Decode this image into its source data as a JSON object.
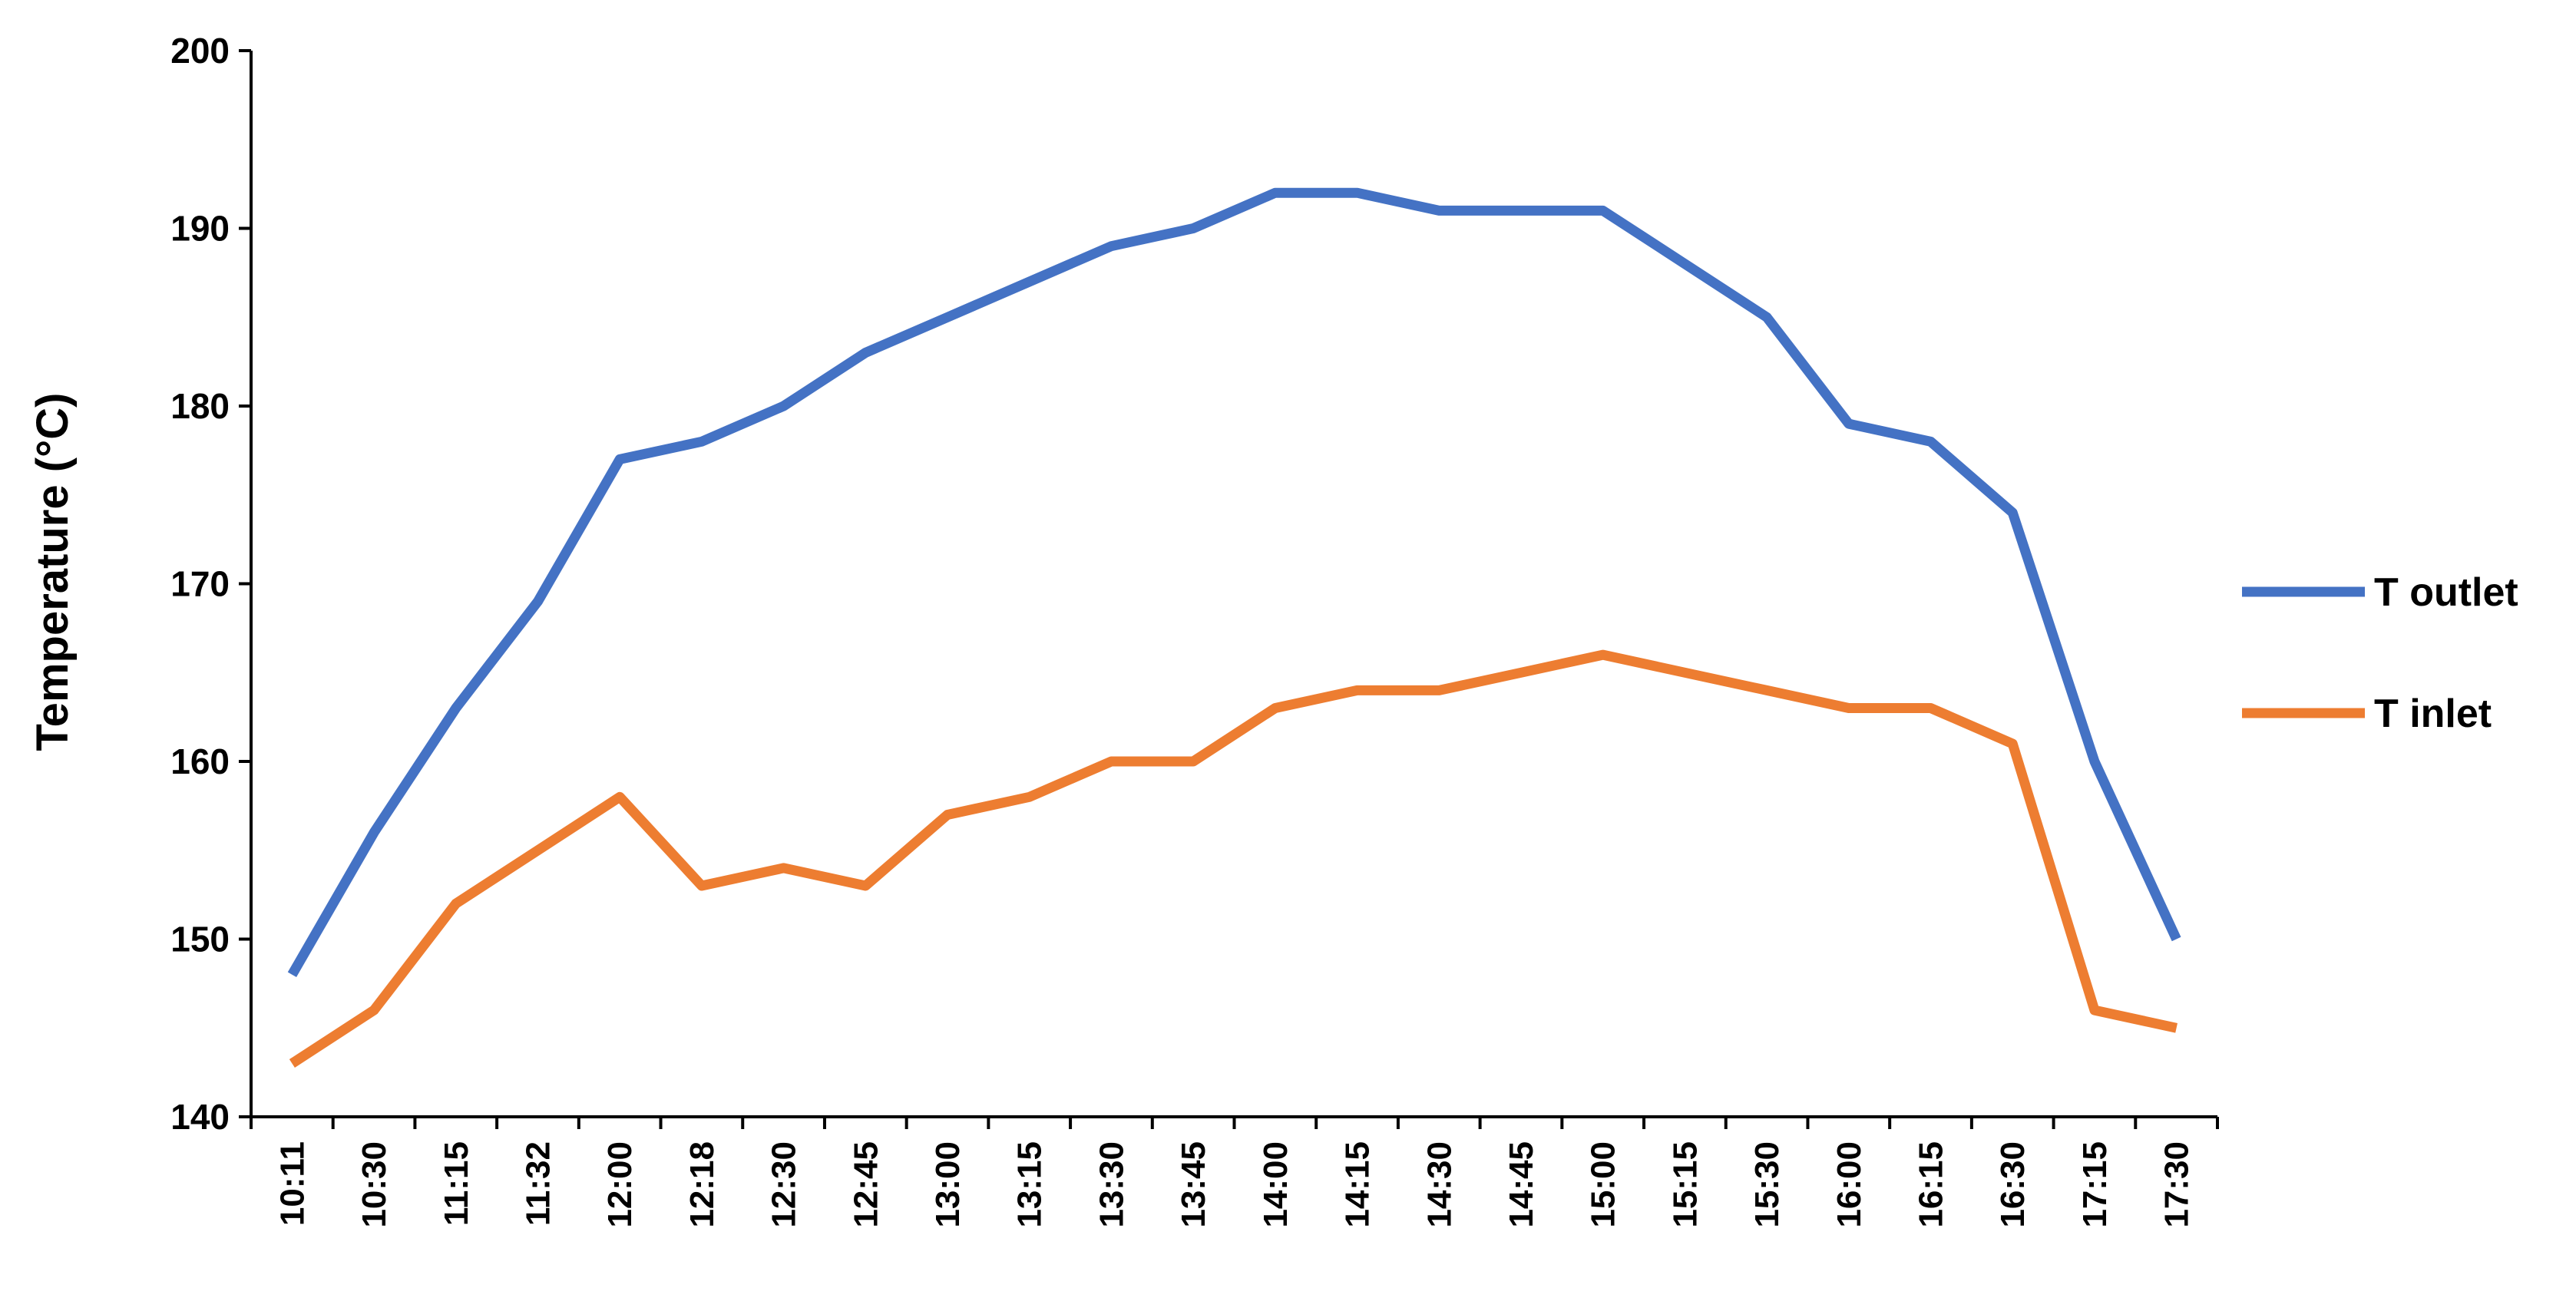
{
  "chart_data": {
    "type": "line",
    "title": "",
    "xlabel": "",
    "ylabel": "Temperature (°C)",
    "ylim": [
      140,
      200
    ],
    "yticks": [
      140,
      150,
      160,
      170,
      180,
      190,
      200
    ],
    "categories": [
      "10:11",
      "10:30",
      "11:15",
      "11:32",
      "12:00",
      "12:18",
      "12:30",
      "12:45",
      "13:00",
      "13:15",
      "13:30",
      "13:45",
      "14:00",
      "14:15",
      "14:30",
      "14:45",
      "15:00",
      "15:15",
      "15:30",
      "16:00",
      "16:15",
      "16:30",
      "17:15",
      "17:30"
    ],
    "series": [
      {
        "name": "T outlet",
        "color": "#4472C4",
        "values": [
          148,
          156,
          163,
          169,
          177,
          178,
          180,
          183,
          185,
          187,
          189,
          190,
          192,
          192,
          191,
          191,
          191,
          188,
          185,
          179,
          178,
          174,
          160,
          150
        ]
      },
      {
        "name": "T inlet",
        "color": "#ED7D31",
        "values": [
          143,
          146,
          152,
          155,
          158,
          153,
          154,
          153,
          157,
          158,
          160,
          160,
          163,
          164,
          164,
          165,
          166,
          165,
          164,
          163,
          163,
          161,
          146,
          145
        ]
      }
    ],
    "grid": false,
    "legend_position": "right"
  }
}
